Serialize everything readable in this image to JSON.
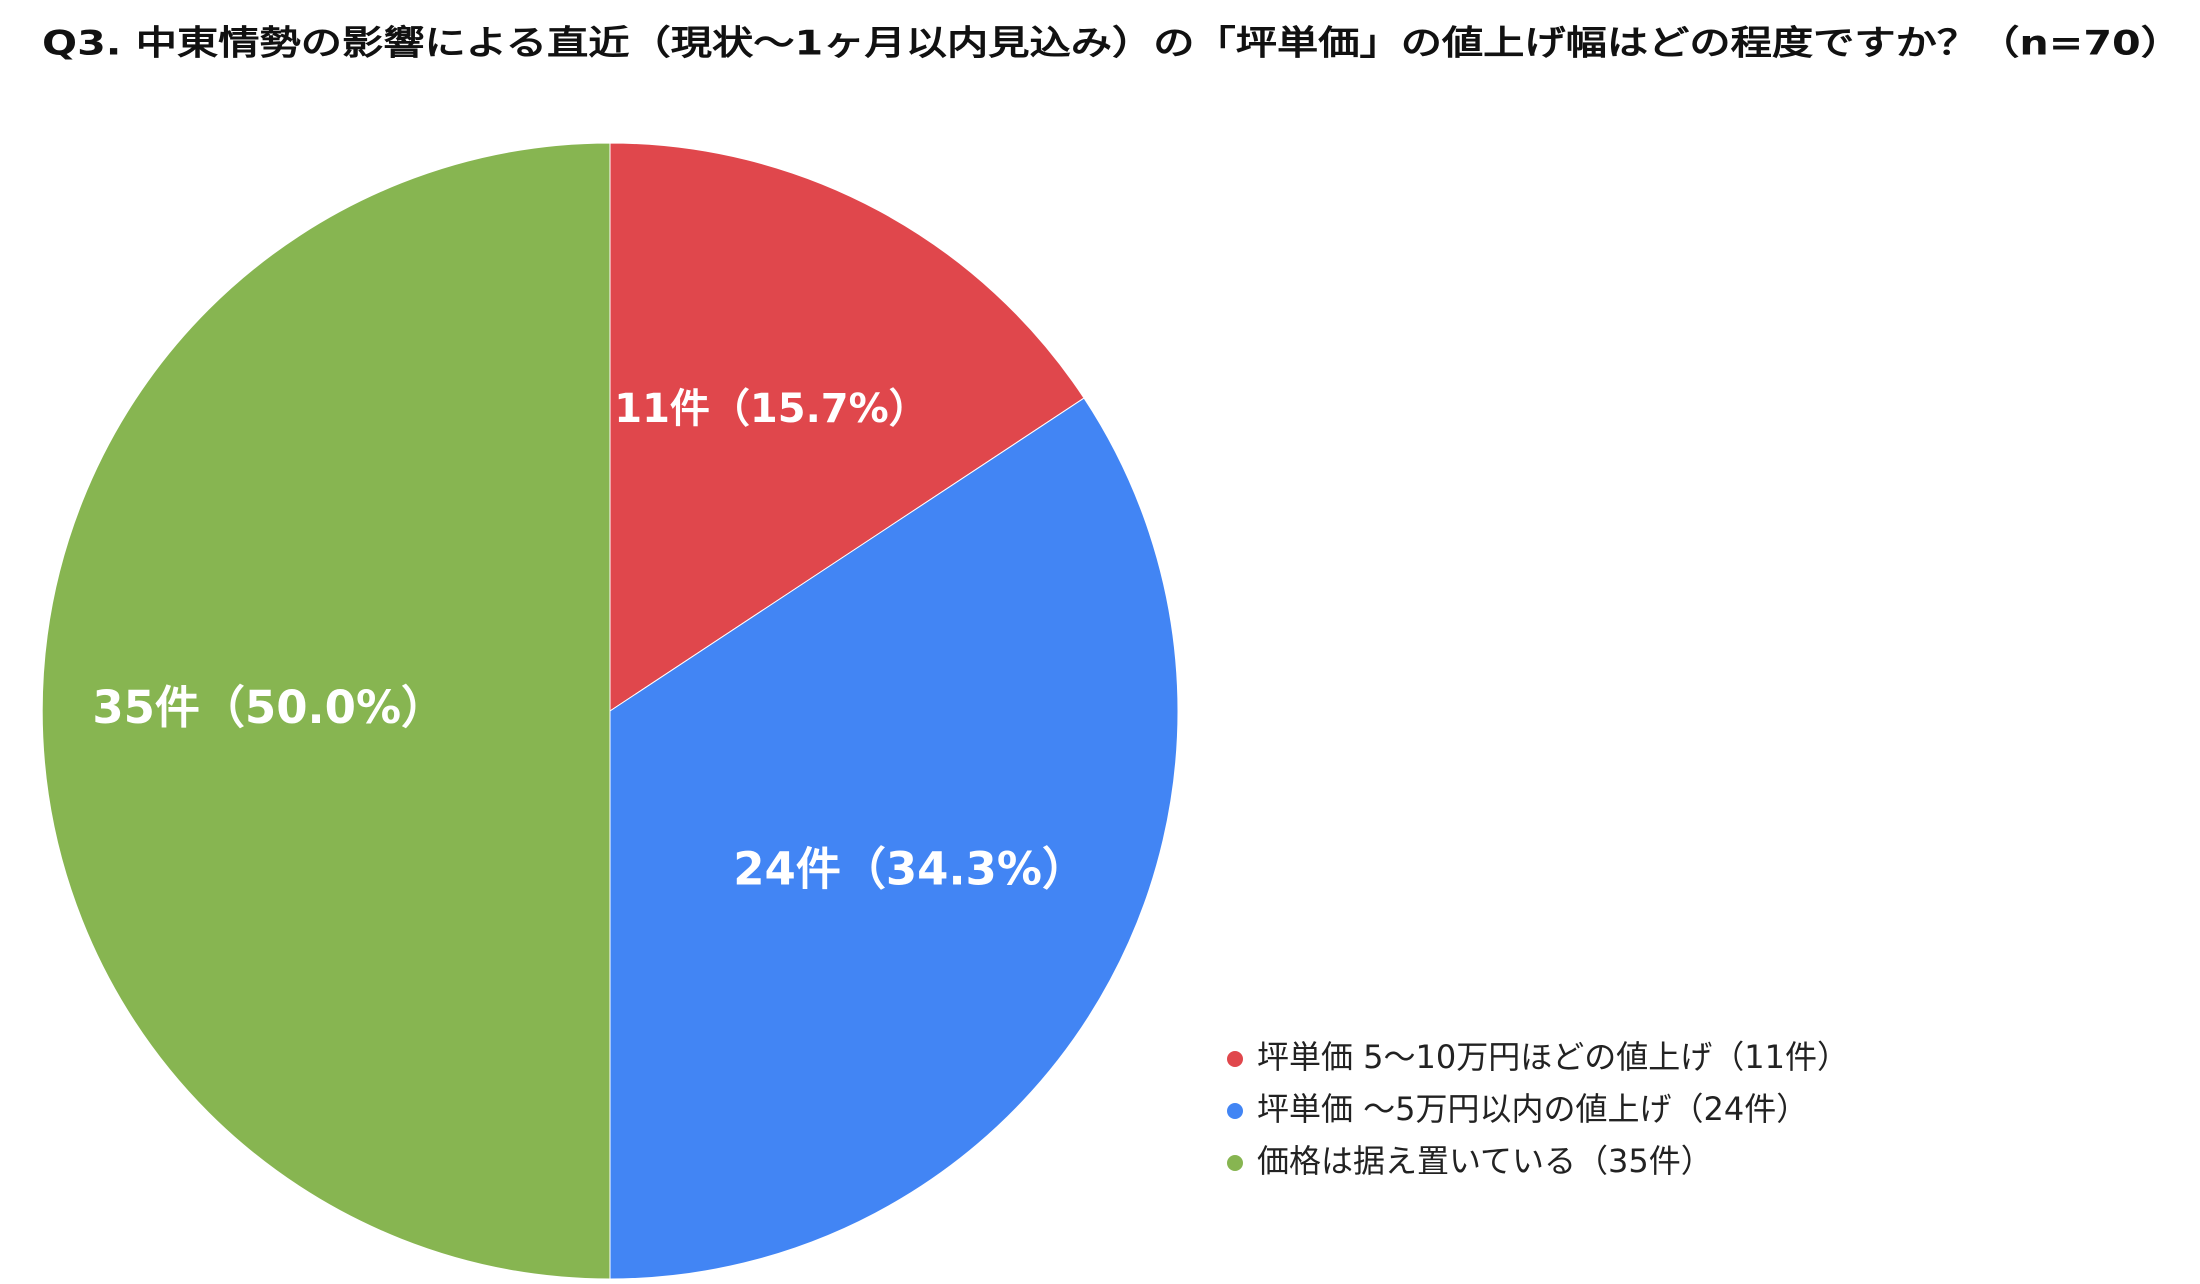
{
  "chart_data": {
    "type": "pie",
    "title": "Q3. 中東情勢の影響による直近（現状〜1ヶ月以内見込み）の「坪単価」の値上げ幅はどの程度ですか？（n=70）",
    "categories": [
      "坪単価 5〜10万円ほどの値上げ（11件）",
      "坪単価 〜5万円以内の値上げ（24件）",
      "価格は据え置いている（35件）"
    ],
    "values": [
      11,
      24,
      35
    ],
    "value_labels": [
      "11件（15.7%）",
      "24件（34.3%）",
      "35件（50.0%）"
    ],
    "colors": [
      "#e0474c",
      "#4285f4",
      "#87b551"
    ],
    "legend": "bottom-right"
  }
}
